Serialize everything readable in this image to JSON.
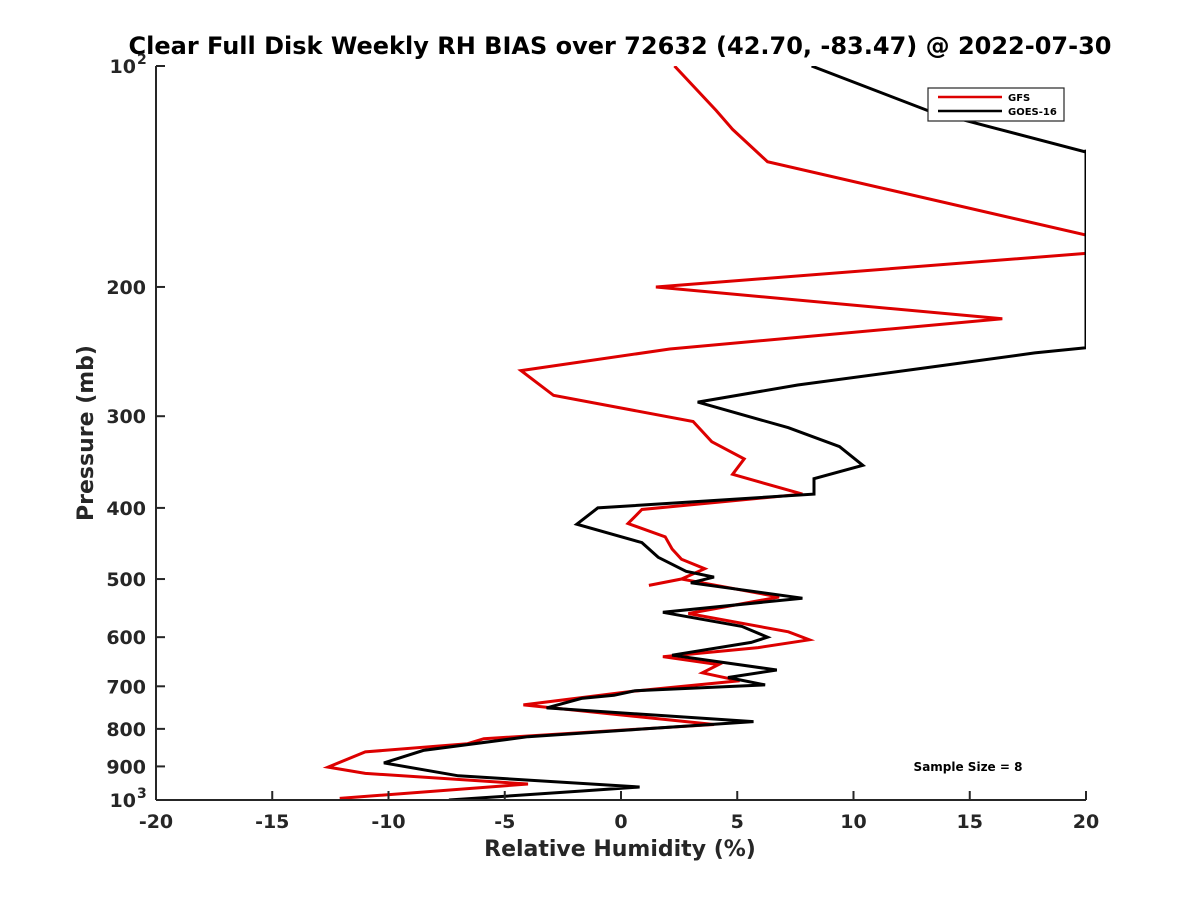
{
  "chart_data": {
    "type": "line",
    "title": "Clear Full Disk Weekly RH BIAS over 72632 (42.70, -83.47) @ 2022-07-30",
    "xlabel": "Relative Humidity (%)",
    "ylabel": "Pressure (mb)",
    "xlim": [
      -20,
      20
    ],
    "ylim": [
      1000,
      100
    ],
    "y_scale": "log",
    "y_reversed": true,
    "x_ticks": [
      "-20",
      "-15",
      "-10",
      "-5",
      "0",
      "5",
      "10",
      "15",
      "20"
    ],
    "y_ticks": [
      {
        "value": 100,
        "label": "10",
        "sup": "2"
      },
      {
        "value": 200,
        "label": "200"
      },
      {
        "value": 300,
        "label": "300"
      },
      {
        "value": 400,
        "label": "400"
      },
      {
        "value": 500,
        "label": "500"
      },
      {
        "value": 600,
        "label": "600"
      },
      {
        "value": 700,
        "label": "700"
      },
      {
        "value": 800,
        "label": "800"
      },
      {
        "value": 900,
        "label": "900"
      },
      {
        "value": 1000,
        "label": "10",
        "sup": "3"
      }
    ],
    "grid": false,
    "legend_position": "top-right",
    "annotation": "Sample Size = 8",
    "series": [
      {
        "name": "GFS",
        "color": "#dd0000",
        "points": [
          [
            2.3,
            100
          ],
          [
            4.1,
            115
          ],
          [
            4.8,
            122
          ],
          [
            6.3,
            135
          ],
          [
            20,
            170
          ],
          [
            20,
            180
          ],
          [
            1.5,
            200
          ],
          [
            16.4,
            221
          ],
          [
            2.1,
            243
          ],
          [
            -4.3,
            260
          ],
          [
            -2.9,
            281
          ],
          [
            3.1,
            305
          ],
          [
            3.9,
            325
          ],
          [
            5.3,
            343
          ],
          [
            4.8,
            360
          ],
          [
            7.8,
            383
          ],
          [
            0.9,
            402
          ],
          [
            0.3,
            420
          ],
          [
            1.9,
            438
          ],
          [
            2.2,
            455
          ],
          [
            2.6,
            470
          ],
          [
            3.6,
            484
          ],
          [
            2.6,
            500
          ],
          [
            1.2,
            510
          ],
          [
            2.6,
            500
          ],
          [
            6.8,
            529
          ],
          [
            2.9,
            557
          ],
          [
            7.2,
            590
          ],
          [
            8.1,
            605
          ],
          [
            5.9,
            620
          ],
          [
            1.8,
            638
          ],
          [
            4.2,
            654
          ],
          [
            3.5,
            671
          ],
          [
            5.1,
            688
          ],
          [
            0.5,
            711
          ],
          [
            -4.2,
            742
          ],
          [
            4.0,
            789
          ],
          [
            -5.9,
            825
          ],
          [
            -6.6,
            838
          ],
          [
            -11.0,
            860
          ],
          [
            -12.6,
            902
          ],
          [
            -11.0,
            920
          ],
          [
            -4.0,
            951
          ],
          [
            -12.1,
            995
          ]
        ]
      },
      {
        "name": "GOES-16",
        "color": "#000000",
        "points": [
          [
            8.2,
            100
          ],
          [
            13.2,
            115
          ],
          [
            20,
            131
          ],
          [
            20,
            130
          ],
          [
            20,
            242
          ],
          [
            17.8,
            246
          ],
          [
            13.0,
            258
          ],
          [
            7.6,
            272
          ],
          [
            3.3,
            287
          ],
          [
            7.2,
            311
          ],
          [
            9.4,
            330
          ],
          [
            10.4,
            350
          ],
          [
            8.3,
            365
          ],
          [
            8.3,
            383
          ],
          [
            -1.0,
            400
          ],
          [
            -1.9,
            421
          ],
          [
            0.9,
            446
          ],
          [
            1.6,
            467
          ],
          [
            2.8,
            488
          ],
          [
            4.0,
            497
          ],
          [
            3.0,
            506
          ],
          [
            7.8,
            531
          ],
          [
            1.8,
            555
          ],
          [
            5.2,
            580
          ],
          [
            6.3,
            600
          ],
          [
            5.6,
            610
          ],
          [
            2.2,
            635
          ],
          [
            6.7,
            665
          ],
          [
            4.6,
            681
          ],
          [
            6.2,
            697
          ],
          [
            0.6,
            710
          ],
          [
            -0.3,
            720
          ],
          [
            -1.7,
            727
          ],
          [
            -3.2,
            749
          ],
          [
            5.7,
            782
          ],
          [
            -4.0,
            820
          ],
          [
            -8.5,
            856
          ],
          [
            -10.2,
            890
          ],
          [
            -7.0,
            927
          ],
          [
            0.8,
            960
          ],
          [
            -1.6,
            972
          ],
          [
            -7.4,
            1000
          ]
        ]
      }
    ]
  }
}
